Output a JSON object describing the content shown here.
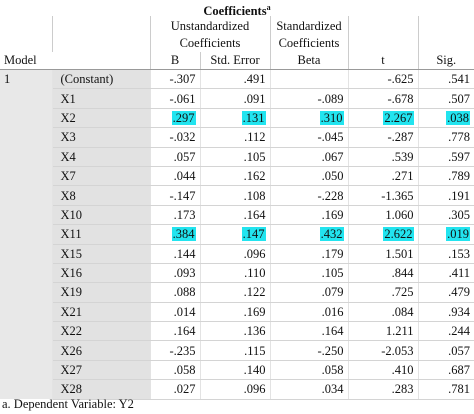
{
  "title": "Coefficients",
  "title_note": "a",
  "header": {
    "model": "Model",
    "unstandardized": "Unstandardized Coefficients",
    "standardized": "Standardized Coefficients",
    "columns": [
      "B",
      "Std. Error",
      "Beta",
      "t",
      "Sig."
    ]
  },
  "model": "1",
  "rows": [
    [
      "(Constant)",
      "-.307",
      ".491",
      null,
      "-.625",
      ".541"
    ],
    [
      "X1",
      "-.061",
      ".091",
      "-.089",
      "-.678",
      ".507"
    ],
    [
      "X2",
      ".297",
      ".131",
      ".310",
      "2.267",
      ".038"
    ],
    [
      "X3",
      "-.032",
      ".112",
      "-.045",
      "-.287",
      ".778"
    ],
    [
      "X4",
      ".057",
      ".105",
      ".067",
      ".539",
      ".597"
    ],
    [
      "X7",
      ".044",
      ".162",
      ".050",
      ".271",
      ".789"
    ],
    [
      "X8",
      "-.147",
      ".108",
      "-.228",
      "-1.365",
      ".191"
    ],
    [
      "X10",
      ".173",
      ".164",
      ".169",
      "1.060",
      ".305"
    ],
    [
      "X11",
      ".384",
      ".147",
      ".432",
      "2.622",
      ".019"
    ],
    [
      "X15",
      ".144",
      ".096",
      ".179",
      "1.501",
      ".153"
    ],
    [
      "X16",
      ".093",
      ".110",
      ".105",
      ".844",
      ".411"
    ],
    [
      "X19",
      ".088",
      ".122",
      ".079",
      ".725",
      ".479"
    ],
    [
      "X21",
      ".014",
      ".169",
      ".016",
      ".084",
      ".934"
    ],
    [
      "X22",
      ".164",
      ".136",
      ".164",
      "1.211",
      ".244"
    ],
    [
      "X26",
      "-.235",
      ".115",
      "-.250",
      "-2.053",
      ".057"
    ],
    [
      "X27",
      ".058",
      ".140",
      ".058",
      ".410",
      ".687"
    ],
    [
      "X28",
      ".027",
      ".096",
      ".034",
      ".283",
      ".781"
    ]
  ],
  "highlight": {
    "color": "#22e4ef",
    "rows": [
      2,
      8
    ]
  },
  "footnote": "a. Dependent Variable: Y2"
}
